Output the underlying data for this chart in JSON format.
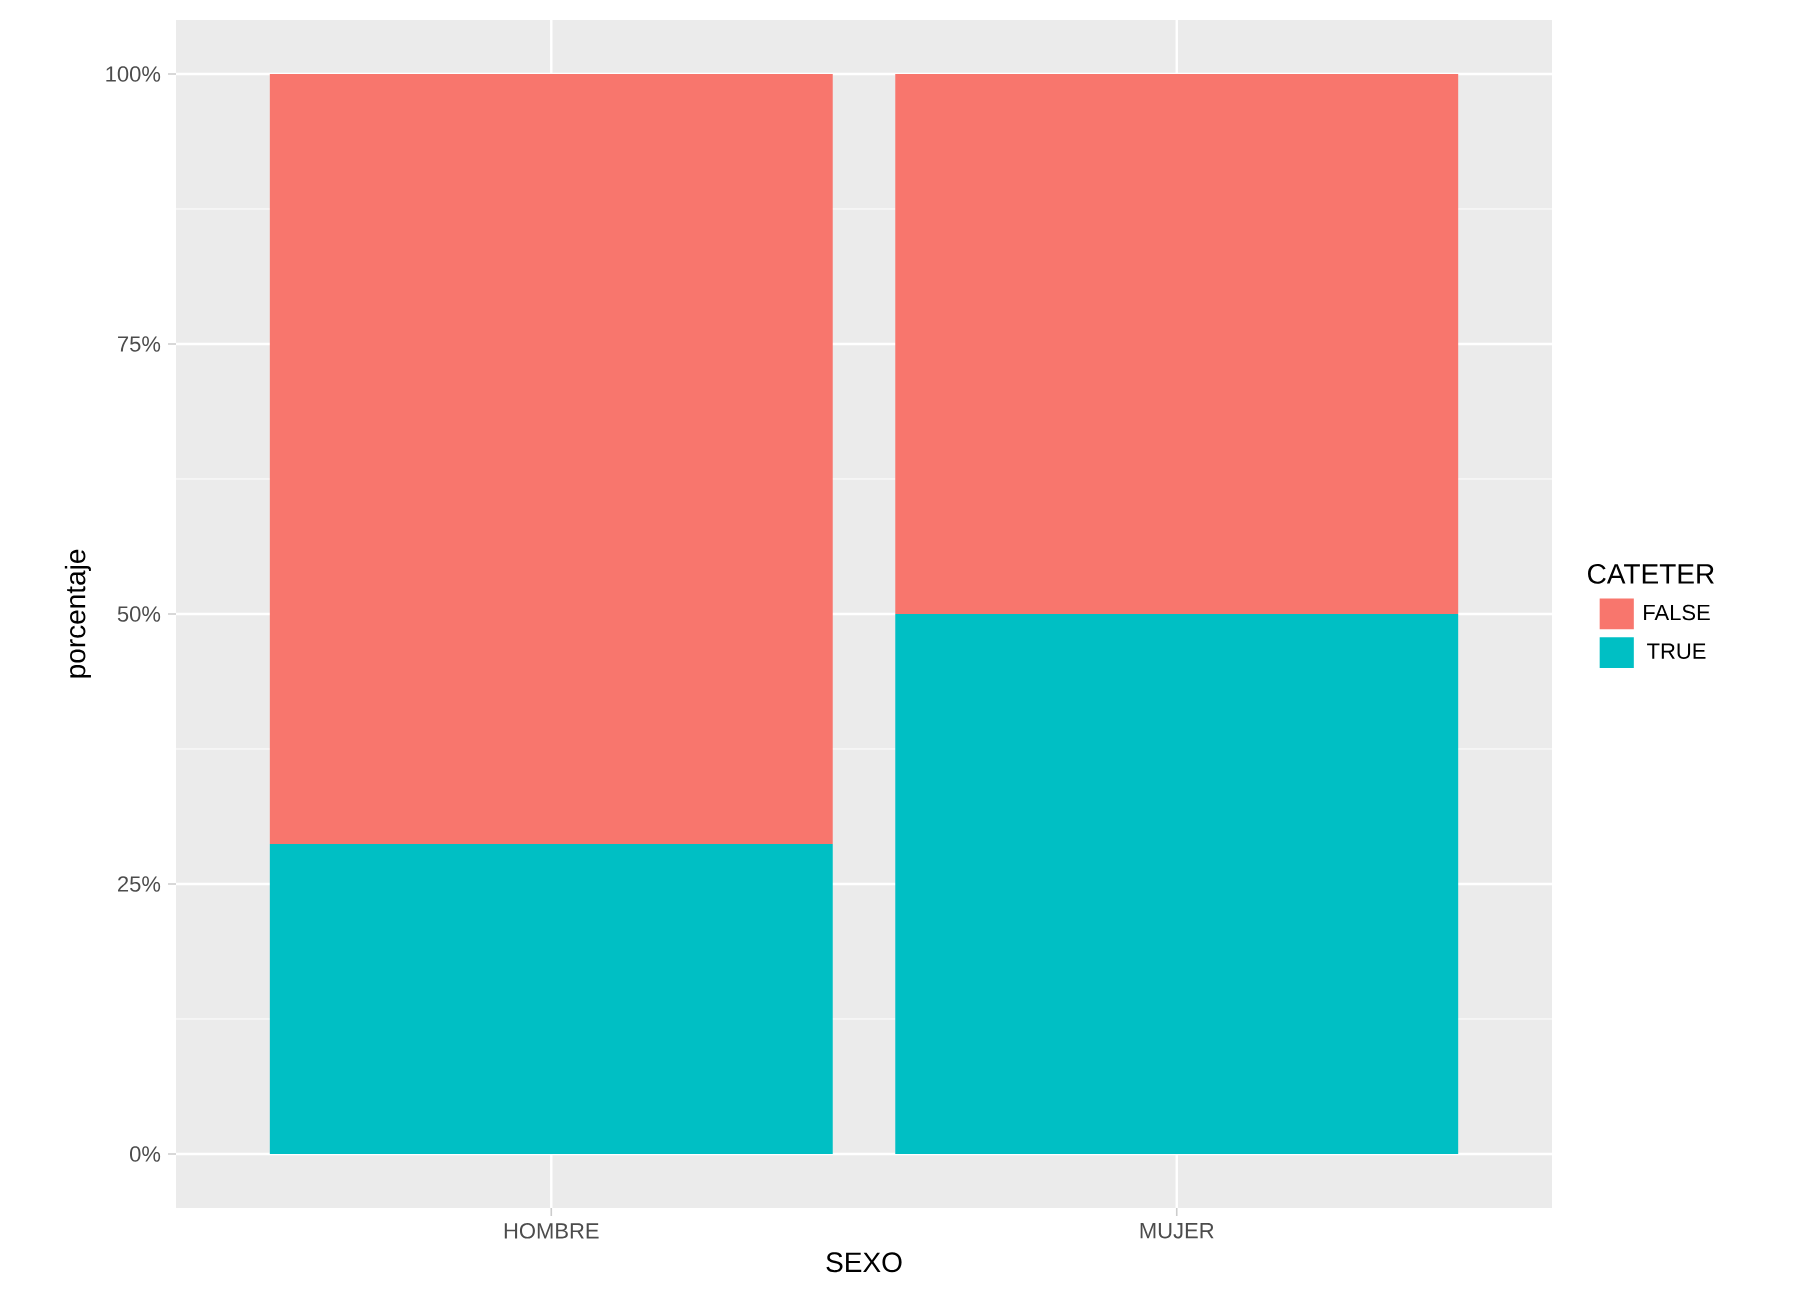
{
  "chart_data": {
    "type": "bar",
    "stacked": true,
    "xlabel": "SEXO",
    "ylabel": "porcentaje",
    "legend_title": "CATETER",
    "legend": "right",
    "grid": true,
    "categories": [
      "HOMBRE",
      "MUJER"
    ],
    "series": [
      {
        "name": "TRUE",
        "color": "#00bfc4",
        "values": [
          28.7,
          50
        ]
      },
      {
        "name": "FALSE",
        "color": "#f8766d",
        "values": [
          71.3,
          50
        ]
      }
    ],
    "ylim": [
      -5,
      105
    ],
    "yticks": [
      {
        "value": 0,
        "label": "0%"
      },
      {
        "value": 25,
        "label": "25%"
      },
      {
        "value": 50,
        "label": "50%"
      },
      {
        "value": 75,
        "label": "75%"
      },
      {
        "value": 100,
        "label": "100%"
      }
    ]
  }
}
